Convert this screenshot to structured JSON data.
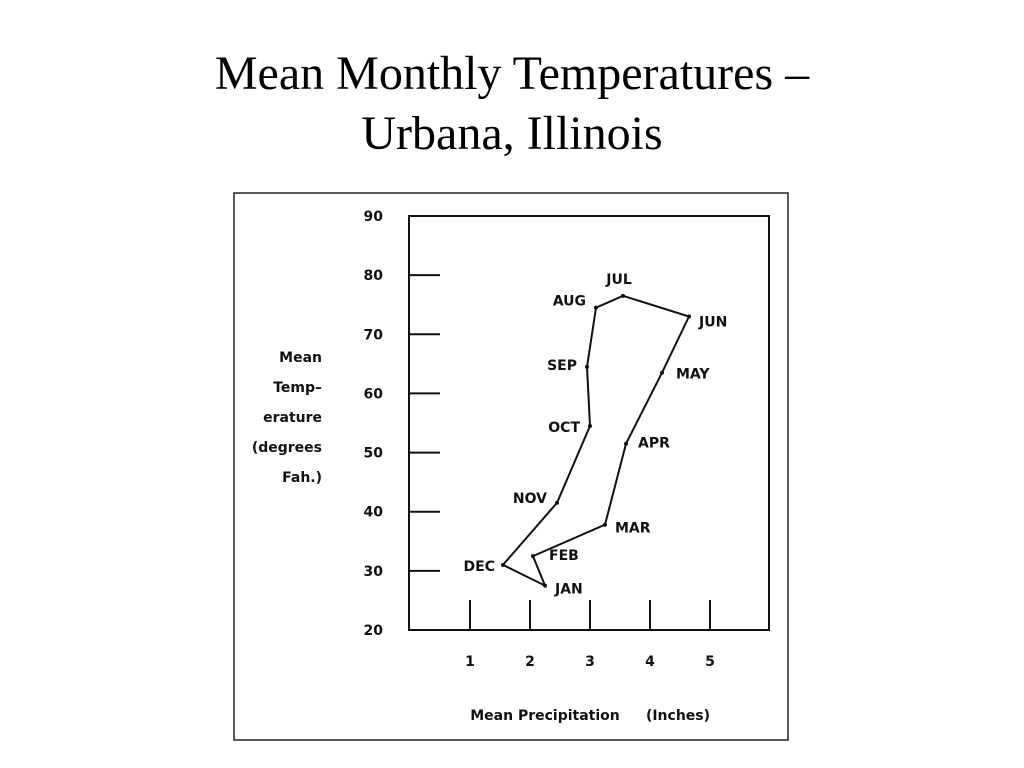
{
  "slide": {
    "title_line1": "Mean Monthly Temperatures –",
    "title_line2": "Urbana, Illinois"
  },
  "chart_data": {
    "type": "line",
    "title": "",
    "xlabel": "Mean Precipitation (Inches)",
    "xlabel_parts": [
      "Mean Precipitation",
      "(Inches)"
    ],
    "ylabel": "Mean Temp- erature (degrees Fah.)",
    "ylabel_lines": [
      "Mean",
      "Temp–",
      "erature",
      "(degrees",
      "Fah.)"
    ],
    "xlim": [
      0,
      5.5
    ],
    "ylim": [
      20,
      90
    ],
    "x_ticks": [
      1,
      2,
      3,
      4,
      5
    ],
    "y_ticks": [
      20,
      30,
      40,
      50,
      60,
      70,
      80,
      90
    ],
    "x_tick_labels": [
      "1",
      "2",
      "3",
      "4",
      "5"
    ],
    "y_tick_labels": [
      "20",
      "30",
      "40",
      "50",
      "60",
      "70",
      "80",
      "90"
    ],
    "grid": false,
    "closed_path": true,
    "series": [
      {
        "points": [
          {
            "label": "JAN",
            "x": 2.25,
            "y": 27.5
          },
          {
            "label": "FEB",
            "x": 2.05,
            "y": 32.5
          },
          {
            "label": "MAR",
            "x": 3.25,
            "y": 37.8
          },
          {
            "label": "APR",
            "x": 3.6,
            "y": 51.5
          },
          {
            "label": "MAY",
            "x": 4.2,
            "y": 63.5
          },
          {
            "label": "JUN",
            "x": 4.65,
            "y": 73.0
          },
          {
            "label": "JUL",
            "x": 3.55,
            "y": 76.5
          },
          {
            "label": "AUG",
            "x": 3.1,
            "y": 74.5
          },
          {
            "label": "SEP",
            "x": 2.95,
            "y": 64.5
          },
          {
            "label": "OCT",
            "x": 3.0,
            "y": 54.5
          },
          {
            "label": "NOV",
            "x": 2.45,
            "y": 41.5
          },
          {
            "label": "DEC",
            "x": 1.55,
            "y": 31.0
          }
        ]
      }
    ]
  }
}
